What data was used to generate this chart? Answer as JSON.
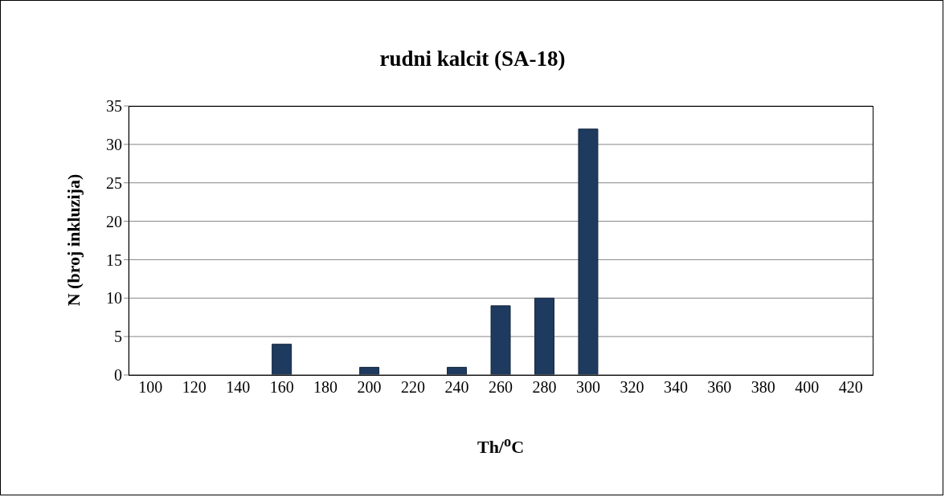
{
  "chart_data": {
    "type": "bar",
    "title": "rudni kalcit (SA-18)",
    "xlabel": "Th/$^{o}$C",
    "ylabel": "N (broj inkluzija)",
    "categories": [
      "100",
      "120",
      "140",
      "160",
      "180",
      "200",
      "220",
      "240",
      "260",
      "280",
      "300",
      "320",
      "340",
      "360",
      "380",
      "400",
      "420"
    ],
    "values": [
      0,
      0,
      0,
      4,
      0,
      1,
      0,
      1,
      9,
      10,
      32,
      0,
      0,
      0,
      0,
      0,
      0
    ],
    "color": "#1f3a5f",
    "ylim": [
      0,
      35
    ],
    "yticks": [
      0,
      5,
      10,
      15,
      20,
      25,
      30,
      35
    ],
    "grid": "y"
  }
}
